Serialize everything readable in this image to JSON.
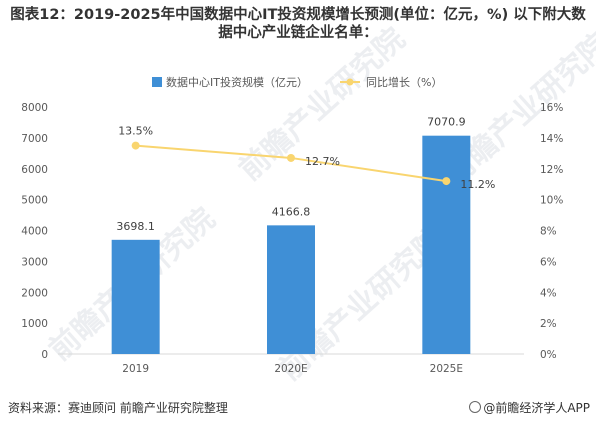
{
  "title": "图表12：2019-2025年中国数据中心IT投资规模增长预测(单位：亿元，%) 以下附大数据中心产业链企业名单：",
  "source": "资料来源：赛迪顾问 前瞻产业研究院整理",
  "brand": "@前瞻经济学人APP",
  "watermark_text": "前瞻产业研究院",
  "colors": {
    "bar": "#3f8fd6",
    "line": "#f9d56f",
    "grid": "#e3e3e3",
    "text": "#595959"
  },
  "chart_data": {
    "type": "bar",
    "categories": [
      "2019",
      "2020E",
      "2025E"
    ],
    "series": [
      {
        "name": "数据中心IT投资规模（亿元）",
        "type": "bar",
        "axis": "left",
        "values": [
          3698.1,
          4166.8,
          7070.9
        ],
        "labels": [
          "3698.1",
          "4166.8",
          "7070.9"
        ]
      },
      {
        "name": "同比增长（%）",
        "type": "line",
        "axis": "right",
        "values": [
          13.5,
          12.7,
          11.2
        ],
        "labels": [
          "13.5%",
          "12.7%",
          "11.2%"
        ]
      }
    ],
    "yleft": {
      "min": 0,
      "max": 8000,
      "ticks": [
        0,
        1000,
        2000,
        3000,
        4000,
        5000,
        6000,
        7000,
        8000
      ]
    },
    "yright": {
      "min": 0,
      "max": 16,
      "ticks": [
        "0%",
        "2%",
        "4%",
        "6%",
        "8%",
        "10%",
        "12%",
        "14%",
        "16%"
      ]
    },
    "legend_position": "top",
    "grid": false
  }
}
